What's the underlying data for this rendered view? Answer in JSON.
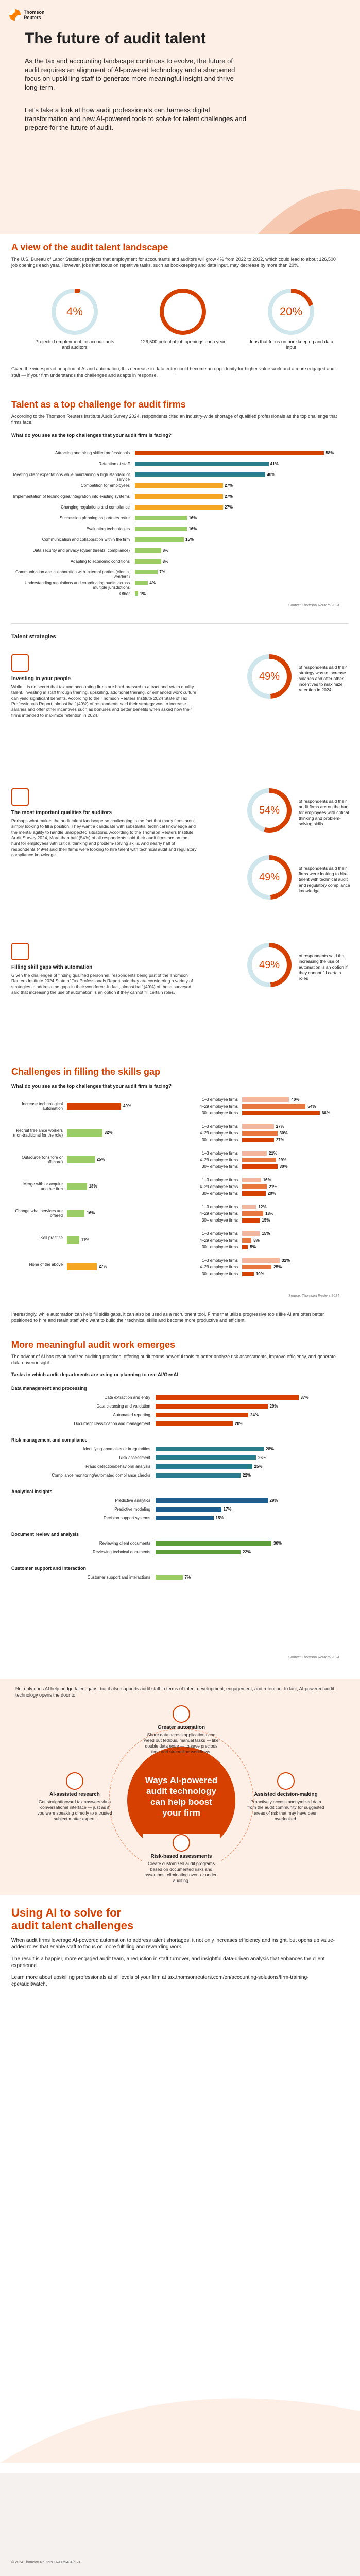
{
  "brand": {
    "name_line1": "Thomson",
    "name_line2": "Reuters",
    "accent": "#d64000",
    "accent_light": "#f5a623"
  },
  "hero": {
    "title": "The future of audit talent",
    "para1": "As the tax and accounting landscape continues to evolve, the future of audit requires an alignment of AI-powered technology and a sharpened focus on upskilling staff to generate more meaningful insight and thrive long-term.",
    "para2": "Let's take a look at how audit professionals can harness digital transformation and new AI-powered tools to solve for talent challenges and prepare for the future of audit."
  },
  "landscape": {
    "title": "A view of the audit talent landscape",
    "intro": "The U.S. Bureau of Labor Statistics projects that employment for accountants and auditors will grow 4% from 2022 to 2032, which could lead to about 126,500 job openings each year. However, jobs that focus on repetitive tasks, such as bookkeeping and data input, may decrease by more than 20%.",
    "stats": [
      {
        "value": "4%",
        "pct": 4,
        "label": "Projected employment for accountants and auditors"
      },
      {
        "value": "126,500",
        "pct": 100,
        "label": "126,500 potential job openings each year"
      },
      {
        "value": "20%",
        "pct": 20,
        "label": "Jobs that focus on bookkeeping and data input"
      }
    ],
    "outro": "Given the widespread adoption of AI and automation, this decrease in data entry could become an opportunity for higher-value work and a more engaged audit staff — if your firm understands the challenges and adapts in response."
  },
  "talent": {
    "title": "Talent as a top challenge for audit firms",
    "intro": "According to the Thomson Reuters Institute Audit Survey 2024, respondents cited an industry-wide shortage of qualified professionals as the top challenge that firms face.",
    "question": "What do you see as the top challenges that your audit firm is facing?",
    "items": [
      {
        "label": "Attracting and hiring skilled professionals",
        "value": 58
      },
      {
        "label": "Retention of staff",
        "value": 41
      },
      {
        "label": "Meeting client expectations while maintaining a high standard of service",
        "value": 40
      },
      {
        "label": "Competition for employees",
        "value": 27
      },
      {
        "label": "Implementation of technologies/integration into existing systems",
        "value": 27
      },
      {
        "label": "Changing regulations and compliance",
        "value": 27
      },
      {
        "label": "Succession planning as partners retire",
        "value": 16
      },
      {
        "label": "Evaluating technologies",
        "value": 16
      },
      {
        "label": "Communication and collaboration within the firm",
        "value": 15
      },
      {
        "label": "Data security and privacy (cyber threats, compliance)",
        "value": 8
      },
      {
        "label": "Adapting to economic conditions",
        "value": 8
      },
      {
        "label": "Communication and collaboration with external parties (clients, vendors)",
        "value": 7
      },
      {
        "label": "Understanding regulations and coordinating audits across multiple jurisdictions",
        "value": 4
      },
      {
        "label": "Other",
        "value": 1
      }
    ],
    "source": "Source: Thomson Reuters 2024"
  },
  "strategies": {
    "title": "Talent strategies",
    "blocks": [
      {
        "title": "Investing in your people",
        "text": "While it is no secret that tax and accounting firms are hard-pressed to attract and retain quality talent, investing in staff through training, upskilling, additional training, or enhanced work culture can yield significant benefits. According to the Thomson Reuters Institute 2024 State of Tax Professionals Report, almost half (49%) of respondents said their strategy was to increase salaries and offer other incentives such as bonuses and better benefits when asked how their firms intended to maximize retention in 2024.",
        "value": "49%",
        "pct": 49,
        "caption": "of respondents said their strategy was to increase salaries and offer other incentives to maximize retention in 2024"
      },
      {
        "title": "The most important qualities for auditors",
        "text": "Perhaps what makes the audit talent landscape so challenging is the fact that many firms aren't simply looking to fill a position. They want a candidate with substantial technical knowledge and the mental agility to handle unexpected situations. According to the Thomson Reuters Institute Audit Survey 2024, More than half (54%) of all respondents said their audit firms are on the hunt for employees with critical thinking and problem-solving skills. And nearly half of respondents (49%) said their firms were looking to hire talent with technical audit and regulatory compliance knowledge.",
        "value": "54%",
        "pct": 54,
        "caption": "of respondents said their audit firms are on the hunt for employees with critical thinking and problem-solving skills",
        "value2": "49%",
        "pct2": 49,
        "caption2": "of respondents said their firms were looking to hire talent with technical audit and regulatory compliance knowledge"
      },
      {
        "title": "Filling skill gaps with automation",
        "text": "Given the challenges of finding qualified personnel, respondents being part of the Thomson Reuters Institute 2024 State of Tax Professionals Report said they are considering a variety of strategies to address the gaps in their workforce. In fact, almost half (49%) of those surveyed said that increasing the use of automation is an option if they cannot fill certain roles.",
        "value": "49%",
        "pct": 49,
        "caption": "of respondents said that increasing the use of automation is an option if they cannot fill certain roles"
      }
    ]
  },
  "skills_gap": {
    "title": "Challenges in filling the skills gap",
    "question": "What do you see as the top challenges that your audit firm is facing?",
    "left": [
      {
        "label": "Increase technological automation",
        "value": 49
      },
      {
        "label": "Recruit freelance workers (non-traditional for the role)",
        "value": 32
      },
      {
        "label": "Outsource (onshore or offshore)",
        "value": 25
      },
      {
        "label": "Merge with or acquire another firm",
        "value": 18
      },
      {
        "label": "Change what services are offered",
        "value": 16
      },
      {
        "label": "Sell practice",
        "value": 11
      },
      {
        "label": "None of the above",
        "value": 27
      }
    ],
    "right_groups": [
      [
        {
          "label": "1–3 employee firms",
          "value": 40
        },
        {
          "label": "4–29 employee firms",
          "value": 54
        },
        {
          "label": "30+ employee firms",
          "value": 66
        }
      ],
      [
        {
          "label": "1–3 employee firms",
          "value": 27
        },
        {
          "label": "4–29 employee firms",
          "value": 30
        },
        {
          "label": "30+ employee firms",
          "value": 27
        }
      ],
      [
        {
          "label": "1–3 employee firms",
          "value": 21
        },
        {
          "label": "4–29 employee firms",
          "value": 29
        },
        {
          "label": "30+ employee firms",
          "value": 30
        }
      ],
      [
        {
          "label": "1–3 employee firms",
          "value": 16
        },
        {
          "label": "4–29 employee firms",
          "value": 21
        },
        {
          "label": "30+ employee firms",
          "value": 20
        }
      ],
      [
        {
          "label": "1–3 employee firms",
          "value": 12
        },
        {
          "label": "4–29 employee firms",
          "value": 18
        },
        {
          "label": "30+ employee firms",
          "value": 15
        }
      ],
      [
        {
          "label": "1–3 employee firms",
          "value": 15
        },
        {
          "label": "4–29 employee firms",
          "value": 8
        },
        {
          "label": "30+ employee firms",
          "value": 5
        }
      ],
      [
        {
          "label": "1–3 employee firms",
          "value": 32
        },
        {
          "label": "4–29 employee firms",
          "value": 25
        },
        {
          "label": "30+ employee firms",
          "value": 10
        }
      ]
    ],
    "source": "Source: Thomson Reuters 2024",
    "outro": "Interestingly, while automation can help fill skills gaps, it can also be used as a recruitment tool. Firms that utilize progressive tools like AI are often better positioned to hire and retain staff who want to build their technical skills and become more productive and efficient."
  },
  "meaningful": {
    "title": "More meaningful audit work emerges",
    "intro": "The advent of AI has revolutionized auditing practices, offering audit teams powerful tools to better analyze risk assessments, improve efficiency, and generate data-driven insight.",
    "question": "Tasks in which audit departments are using or planning to use AI/GenAI",
    "groups": [
      {
        "name": "Data management and processing",
        "items": [
          {
            "label": "Data extraction and entry",
            "value": 37
          },
          {
            "label": "Data cleansing and validation",
            "value": 29
          },
          {
            "label": "Automated reporting",
            "value": 24
          },
          {
            "label": "Document classification and management",
            "value": 20
          }
        ]
      },
      {
        "name": "Risk management and compliance",
        "items": [
          {
            "label": "Identifying anomalies or irregularities",
            "value": 28
          },
          {
            "label": "Risk assessment",
            "value": 26
          },
          {
            "label": "Fraud detection/behavioral analysis",
            "value": 25
          },
          {
            "label": "Compliance monitoring/automated compliance checks",
            "value": 22
          }
        ]
      },
      {
        "name": "Analytical insights",
        "items": [
          {
            "label": "Predictive analytics",
            "value": 29
          },
          {
            "label": "Predictive modeling",
            "value": 17
          },
          {
            "label": "Decision support systems",
            "value": 15
          }
        ]
      },
      {
        "name": "Document review and analysis",
        "items": [
          {
            "label": "Reviewing client documents",
            "value": 30
          },
          {
            "label": "Reviewing technical documents",
            "value": 22
          }
        ]
      },
      {
        "name": "Customer support and interaction",
        "items": [
          {
            "label": "Customer support and interactions",
            "value": 7
          }
        ]
      }
    ],
    "source": "Source: Thomson Reuters 2024"
  },
  "hub": {
    "intro": "Not only does AI help bridge talent gaps, but it also supports audit staff in terms of talent development, engagement, and retention. In fact, AI-powered audit technology opens the door to:",
    "center": "Ways AI-powered audit technology can help boost your firm",
    "nodes": [
      {
        "title": "Greater automation",
        "text": "Share data across applications and weed out tedious, manual tasks — like double data entry — to save precious time and streamline workflows."
      },
      {
        "title": "AI-assisted research",
        "text": "Get straightforward tax answers via a conversational interface — just as if you were speaking directly to a trusted subject matter expert."
      },
      {
        "title": "Assisted decision-making",
        "text": "Proactively access anonymized data from the audit community for suggested areas of risk that may have been overlooked."
      },
      {
        "title": "Risk-based assessments",
        "text": "Create customized audit programs based on documented risks and assertions, eliminating over- or under-auditing."
      }
    ]
  },
  "closing": {
    "title_line1": "Using AI to solve for",
    "title_line2": "audit talent challenges",
    "para1": "When audit firms leverage AI-powered automation to address talent shortages, it not only increases efficiency and insight, but opens up value-added roles that enable staff to focus on more fulfilling and rewarding work.",
    "para2": "The result is a happier, more engaged audit team, a reduction in staff turnover, and insightful data-driven analysis that enhances the client experience.",
    "para3": "Learn more about upskilling professionals at all levels of your firm at tax.thomsonreuters.com/en/accounting-solutions/firm-training-cpe/auditwatch.",
    "copyright": "© 2024 Thomson Reuters  TR4179431/5-24"
  }
}
